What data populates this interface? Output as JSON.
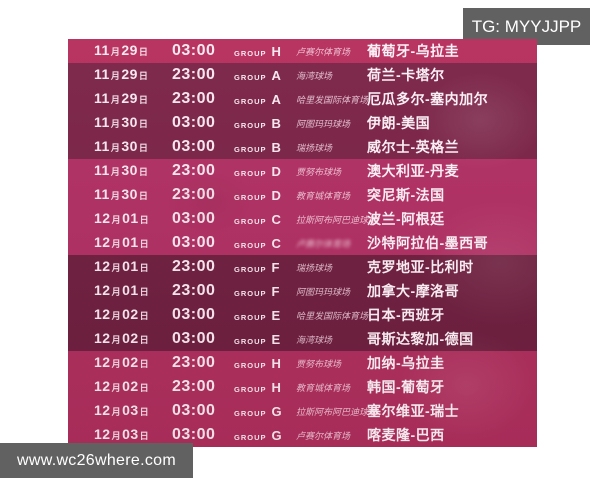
{
  "badges": {
    "telegram": "TG: MYYJJPP",
    "website": "www.wc26where.com"
  },
  "colors": {
    "badge_bg": "#616161",
    "row_bands": {
      "a": "#b52c5b",
      "b": "#7a2246",
      "c": "#b02e62",
      "d": "#6e1e3e",
      "e": "#ae2e5c"
    }
  },
  "table": {
    "group_label": "GROUP",
    "month_unit": "月",
    "day_unit": "日",
    "rows": [
      {
        "month": "11",
        "day": "29",
        "time": "03:00",
        "group": "H",
        "venue": "卢赛尔体育场",
        "match": "葡萄牙-乌拉圭",
        "band": "a"
      },
      {
        "month": "11",
        "day": "29",
        "time": "23:00",
        "group": "A",
        "venue": "海湾球场",
        "match": "荷兰-卡塔尔",
        "band": "b"
      },
      {
        "month": "11",
        "day": "29",
        "time": "23:00",
        "group": "A",
        "venue": "哈里发国际体育场",
        "match": "厄瓜多尔-塞内加尔",
        "band": "b"
      },
      {
        "month": "11",
        "day": "30",
        "time": "03:00",
        "group": "B",
        "venue": "阿图玛玛球场",
        "match": "伊朗-美国",
        "band": "b"
      },
      {
        "month": "11",
        "day": "30",
        "time": "03:00",
        "group": "B",
        "venue": "瑞扬球场",
        "match": "威尔士-英格兰",
        "band": "b"
      },
      {
        "month": "11",
        "day": "30",
        "time": "23:00",
        "group": "D",
        "venue": "贾努布球场",
        "match": "澳大利亚-丹麦",
        "band": "c"
      },
      {
        "month": "11",
        "day": "30",
        "time": "23:00",
        "group": "D",
        "venue": "教育城体育场",
        "match": "突尼斯-法国",
        "band": "c"
      },
      {
        "month": "12",
        "day": "01",
        "time": "03:00",
        "group": "C",
        "venue": "拉斯阿布阿巴迪球场",
        "match": "波兰-阿根廷",
        "band": "c"
      },
      {
        "month": "12",
        "day": "01",
        "time": "03:00",
        "group": "C",
        "venue": "卢赛尔体育场",
        "match": "沙特阿拉伯-墨西哥",
        "band": "c",
        "venue_blurred": true
      },
      {
        "month": "12",
        "day": "01",
        "time": "23:00",
        "group": "F",
        "venue": "瑞扬球场",
        "match": "克罗地亚-比利时",
        "band": "d"
      },
      {
        "month": "12",
        "day": "01",
        "time": "23:00",
        "group": "F",
        "venue": "阿图玛玛球场",
        "match": "加拿大-摩洛哥",
        "band": "d"
      },
      {
        "month": "12",
        "day": "02",
        "time": "03:00",
        "group": "E",
        "venue": "哈里发国际体育场",
        "match": "日本-西班牙",
        "band": "d"
      },
      {
        "month": "12",
        "day": "02",
        "time": "03:00",
        "group": "E",
        "venue": "海湾球场",
        "match": "哥斯达黎加-德国",
        "band": "d"
      },
      {
        "month": "12",
        "day": "02",
        "time": "23:00",
        "group": "H",
        "venue": "贾努布球场",
        "match": "加纳-乌拉圭",
        "band": "e"
      },
      {
        "month": "12",
        "day": "02",
        "time": "23:00",
        "group": "H",
        "venue": "教育城体育场",
        "match": "韩国-葡萄牙",
        "band": "e"
      },
      {
        "month": "12",
        "day": "03",
        "time": "03:00",
        "group": "G",
        "venue": "拉斯阿布阿巴迪球场",
        "match": "塞尔维亚-瑞士",
        "band": "e"
      },
      {
        "month": "12",
        "day": "03",
        "time": "03:00",
        "group": "G",
        "venue": "卢赛尔体育场",
        "match": "喀麦隆-巴西",
        "band": "e"
      }
    ]
  }
}
